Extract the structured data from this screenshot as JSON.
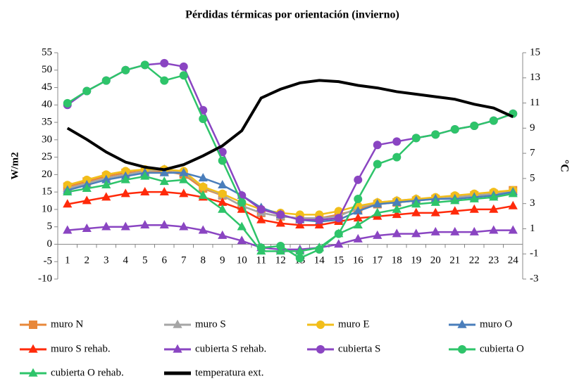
{
  "chart_data": {
    "type": "line",
    "title": "Pérdidas térmicas por orientación (invierno)",
    "y_label": "W/m2",
    "y2_label": "°C",
    "categories": [
      "1",
      "2",
      "3",
      "4",
      "5",
      "6",
      "7",
      "8",
      "9",
      "10",
      "11",
      "12",
      "13",
      "14",
      "15",
      "16",
      "17",
      "18",
      "19",
      "20",
      "21",
      "22",
      "23",
      "24"
    ],
    "ylim": [
      -10,
      55
    ],
    "yticks": [
      -10,
      -5,
      0,
      5,
      10,
      15,
      20,
      25,
      30,
      35,
      40,
      45,
      50,
      55
    ],
    "y2lim": [
      -3,
      15
    ],
    "y2ticks": [
      -3,
      -1,
      1,
      3,
      5,
      7,
      9,
      11,
      13,
      15
    ],
    "grid": false,
    "legend": "bottom",
    "series": [
      {
        "name": "muro N",
        "color": "#e8883a",
        "marker": "square",
        "values": [
          16.5,
          18,
          19.5,
          20.5,
          21,
          21,
          20,
          16,
          14,
          11,
          9,
          8,
          7.5,
          7.5,
          8.5,
          10,
          11.5,
          12,
          12.5,
          13,
          13.5,
          14,
          14.5,
          15.5
        ]
      },
      {
        "name": "muro S",
        "color": "#a5a5a5",
        "marker": "triangle",
        "values": [
          16,
          17.5,
          19,
          20,
          21,
          21.5,
          20.5,
          16.5,
          14,
          11,
          9,
          8,
          7.5,
          7.5,
          8,
          10.5,
          12,
          12.5,
          13,
          13,
          13.5,
          14,
          14.5,
          15
        ]
      },
      {
        "name": "muro E",
        "color": "#f2be1a",
        "marker": "circle",
        "values": [
          17,
          18.5,
          20,
          21,
          21.5,
          21.5,
          21,
          16.5,
          14.5,
          12,
          10,
          9,
          8.5,
          8.5,
          9.5,
          11,
          12,
          12.5,
          13,
          13.5,
          14,
          14.5,
          15,
          15.5
        ]
      },
      {
        "name": "muro O",
        "color": "#4a7ebb",
        "marker": "triangle",
        "values": [
          15.5,
          17,
          18.5,
          19.5,
          20.5,
          20.5,
          20.5,
          19,
          17,
          14,
          10.5,
          8.5,
          7,
          6.5,
          7,
          9.5,
          11.5,
          12,
          12.5,
          13,
          13,
          13.5,
          14,
          15
        ]
      },
      {
        "name": "muro S rehab.",
        "color": "#ff2a0a",
        "marker": "triangle",
        "values": [
          11.5,
          12.5,
          13.5,
          14.5,
          15,
          15,
          14.5,
          13.5,
          12,
          10,
          7,
          6,
          5.5,
          5.5,
          6.5,
          7.5,
          8,
          8.5,
          9,
          9,
          9.5,
          10,
          10,
          11
        ]
      },
      {
        "name": "cubierta S rehab.",
        "color": "#8a45c2",
        "marker": "triangle",
        "values": [
          4,
          4.5,
          5,
          5,
          5.5,
          5.5,
          5,
          4,
          2.5,
          1,
          -1,
          -1.5,
          -1.5,
          -1,
          0,
          1.5,
          2.5,
          3,
          3,
          3.5,
          3.5,
          3.5,
          4,
          4
        ]
      },
      {
        "name": "cubierta S",
        "color": "#8a45c2",
        "marker": "circle",
        "values": [
          40,
          44,
          47,
          50,
          51.5,
          52,
          51,
          38.5,
          26.5,
          14,
          10,
          8.5,
          7,
          7,
          7.5,
          18.5,
          28.5,
          29.5,
          30.5,
          31.5,
          33,
          34,
          35.5,
          37.5
        ]
      },
      {
        "name": "cubierta O",
        "color": "#2ec46a",
        "marker": "circle",
        "values": [
          40.5,
          44,
          47,
          50,
          51.5,
          47,
          48.5,
          36,
          24,
          12,
          -1,
          -0.5,
          -4,
          -1.5,
          3,
          13,
          23,
          25,
          30.5,
          31.5,
          33,
          34,
          35.5,
          37.5
        ]
      },
      {
        "name": "cubierta O rehab.",
        "color": "#2ec46a",
        "marker": "triangle",
        "values": [
          15,
          16,
          17,
          18.5,
          19.5,
          18,
          18.5,
          14,
          10,
          5,
          -2,
          -2,
          -2,
          -1,
          3,
          5.5,
          9,
          10,
          11.5,
          12,
          12.5,
          13,
          13.5,
          14.5
        ]
      },
      {
        "name": "temperatura ext.",
        "color": "#000000",
        "marker": "none",
        "axis": "y2",
        "values": [
          9,
          8.1,
          7.1,
          6.3,
          5.9,
          5.7,
          6.1,
          6.8,
          7.6,
          8.8,
          11.4,
          12.1,
          12.6,
          12.8,
          12.7,
          12.4,
          12.2,
          11.9,
          11.7,
          11.5,
          11.3,
          10.9,
          10.6,
          9.9
        ]
      }
    ]
  }
}
